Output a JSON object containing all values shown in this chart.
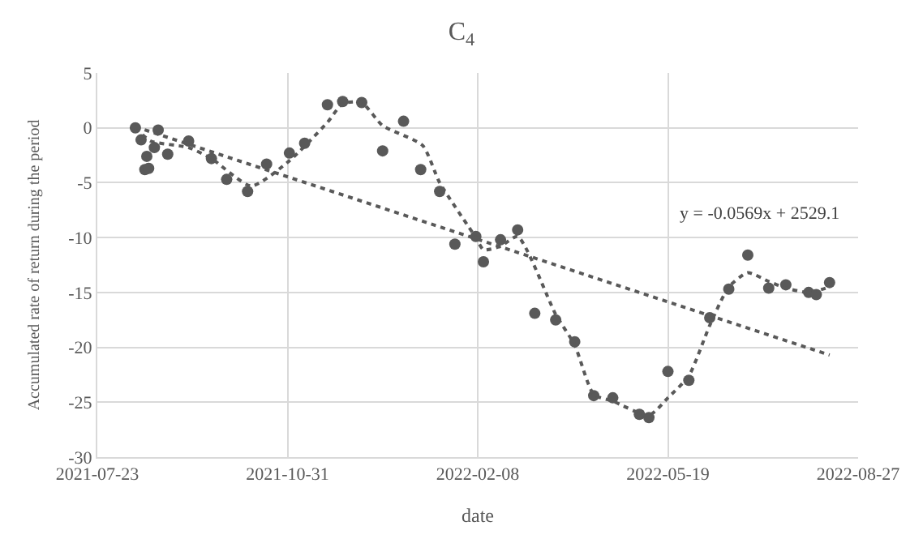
{
  "chart_data": {
    "type": "scatter",
    "title": "C$_{4}$",
    "xlabel": "date",
    "ylabel": "Accumulated rate of return during the period",
    "xlim": [
      "2021-07-23",
      "2022-08-27"
    ],
    "xticks": [
      {
        "value": "2021-07-23",
        "label": "2021-07-23"
      },
      {
        "value": "2021-10-31",
        "label": "2021-10-31"
      },
      {
        "value": "2022-02-08",
        "label": "2022-02-08"
      },
      {
        "value": "2022-05-19",
        "label": "2022-05-19"
      },
      {
        "value": "2022-08-27",
        "label": "2022-08-27"
      }
    ],
    "ylim": [
      -30,
      5
    ],
    "yticks": [
      -30,
      -25,
      -20,
      -15,
      -10,
      -5,
      0,
      5
    ],
    "grid": true,
    "annotations": [
      "y = -0.0569x + 2529.1"
    ],
    "series": [
      {
        "marker": "circle",
        "color": "#595959",
        "x": [
          "2021-08-12",
          "2021-08-15",
          "2021-08-24",
          "2021-08-22",
          "2021-08-18",
          "2021-08-17",
          "2021-08-19",
          "2021-08-29",
          "2021-09-09",
          "2021-09-21",
          "2021-09-29",
          "2021-10-10",
          "2021-10-20",
          "2021-11-01",
          "2021-11-09",
          "2021-11-21",
          "2021-11-29",
          "2021-12-09",
          "2021-12-20",
          "2021-12-31",
          "2022-01-09",
          "2022-01-19",
          "2022-01-27",
          "2022-02-07",
          "2022-02-11",
          "2022-02-20",
          "2022-03-01",
          "2022-03-10",
          "2022-03-21",
          "2022-03-31",
          "2022-04-10",
          "2022-04-20",
          "2022-05-04",
          "2022-05-09",
          "2022-05-19",
          "2022-05-30",
          "2022-06-10",
          "2022-06-20",
          "2022-06-30",
          "2022-07-11",
          "2022-07-20",
          "2022-08-01",
          "2022-08-05",
          "2022-08-12"
        ],
        "values": [
          0,
          -1.1,
          -0.2,
          -1.8,
          -2.6,
          -3.8,
          -3.7,
          -2.4,
          -1.2,
          -2.8,
          -4.7,
          -5.8,
          -3.3,
          -2.3,
          -1.4,
          2.1,
          2.4,
          2.3,
          -2.1,
          0.6,
          -3.8,
          -5.8,
          -10.6,
          -9.9,
          -12.2,
          -10.2,
          -9.3,
          -16.9,
          -17.5,
          -19.5,
          -24.4,
          -24.6,
          -26.1,
          -26.4,
          -22.2,
          -23.0,
          -17.3,
          -14.7,
          -11.6,
          -14.6,
          -14.3,
          -15.0,
          -15.2,
          -14.1
        ]
      },
      {
        "type": "line",
        "line_style": "dotted",
        "marker": "none",
        "color": "#595959",
        "x": [
          "2021-08-12",
          "2021-08-20",
          "2021-09-09",
          "2021-09-21",
          "2021-10-12",
          "2021-11-01",
          "2021-11-21",
          "2021-11-29",
          "2021-12-09",
          "2021-12-20",
          "2022-01-10",
          "2022-01-19",
          "2022-02-07",
          "2022-02-11",
          "2022-02-20",
          "2022-03-01",
          "2022-03-21",
          "2022-03-31",
          "2022-04-10",
          "2022-04-20",
          "2022-05-09",
          "2022-05-19",
          "2022-05-30",
          "2022-06-10",
          "2022-06-20",
          "2022-06-30",
          "2022-07-11",
          "2022-07-20",
          "2022-08-01",
          "2022-08-12"
        ],
        "values": [
          0,
          -1.2,
          -1.8,
          -2.8,
          -5.3,
          -3.0,
          0.5,
          2.2,
          2.3,
          0.2,
          -1.6,
          -5.0,
          -10.0,
          -11.1,
          -10.8,
          -9.9,
          -17.0,
          -19.8,
          -24.3,
          -24.9,
          -26.2,
          -24.6,
          -22.6,
          -18.0,
          -14.5,
          -13.2,
          -14.0,
          -14.6,
          -15.0,
          -14.5
        ]
      },
      {
        "type": "line",
        "line_style": "dotted",
        "marker": "none",
        "color": "#595959",
        "x": [
          "2021-08-12",
          "2022-08-12"
        ],
        "values": [
          0.1,
          -20.7
        ]
      }
    ]
  }
}
